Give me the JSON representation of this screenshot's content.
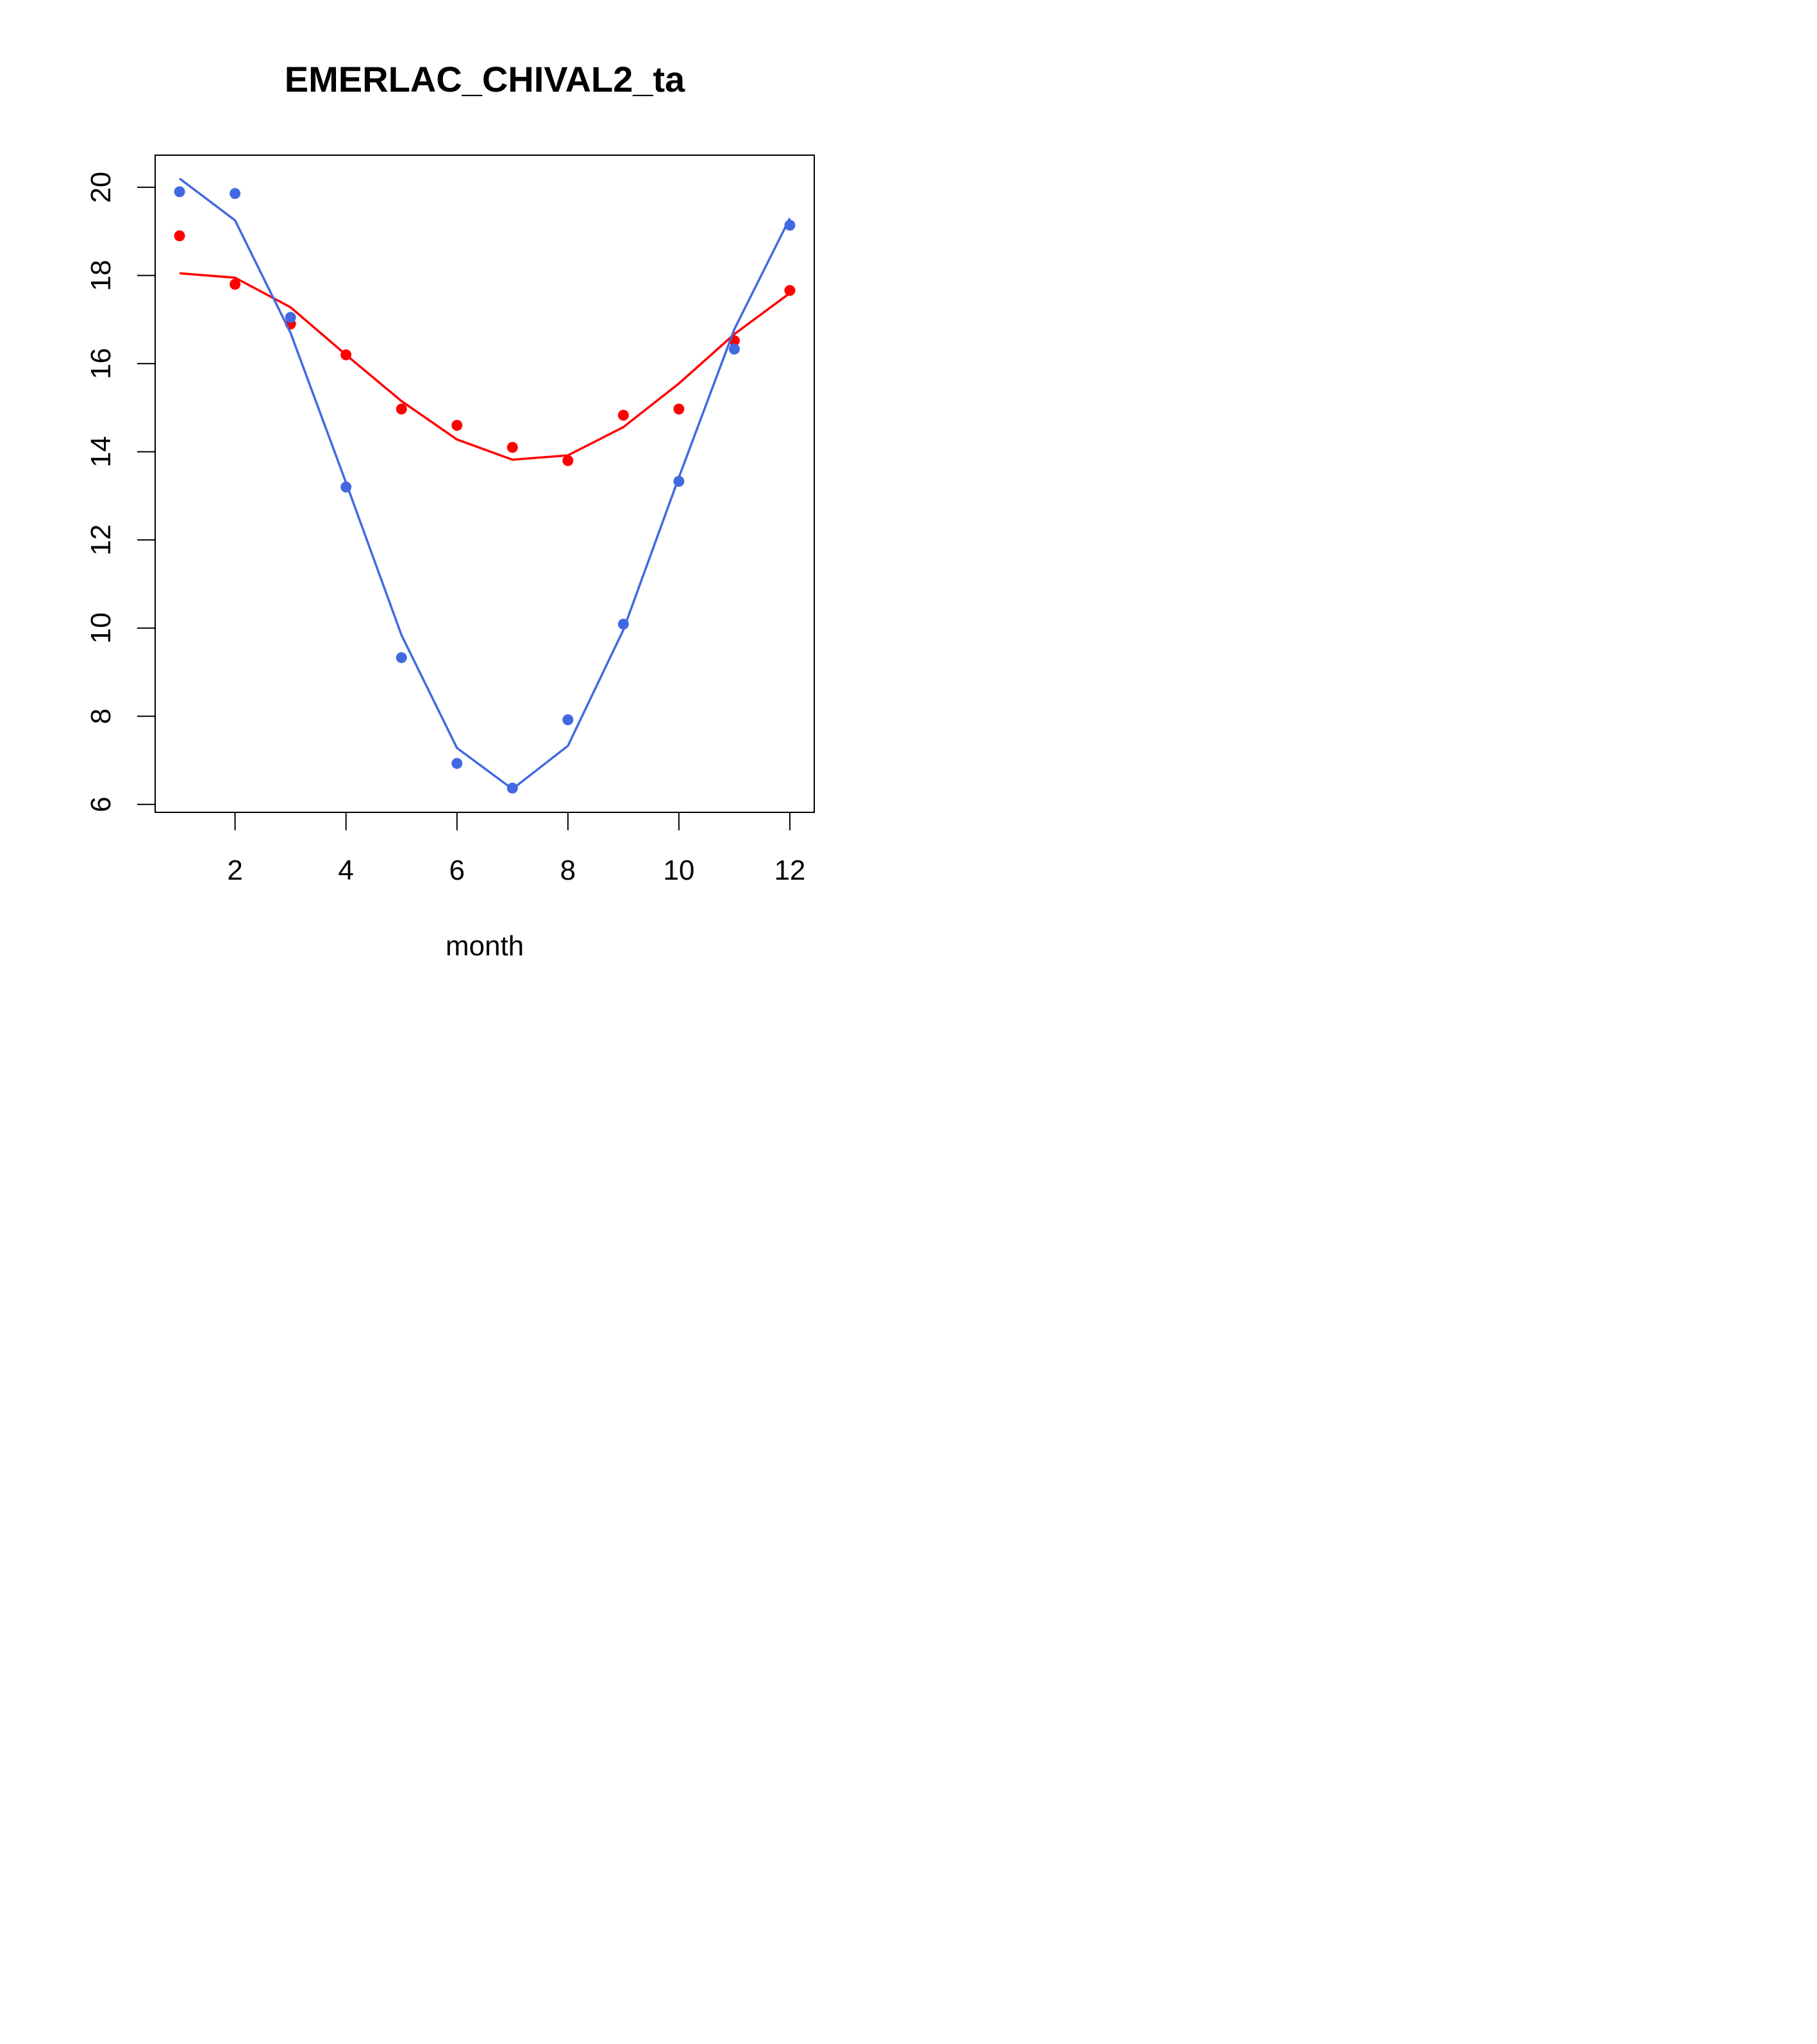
{
  "chart_data": {
    "type": "line",
    "title": "EMERLAC_CHIVAL2_ta",
    "xlabel": "month",
    "ylabel": "",
    "xlim": [
      0.56,
      12.44
    ],
    "ylim": [
      5.82,
      20.73
    ],
    "xticks": [
      2,
      4,
      6,
      8,
      10,
      12
    ],
    "yticks": [
      6,
      8,
      10,
      12,
      14,
      16,
      18,
      20
    ],
    "grid": false,
    "series": [
      {
        "color": "#ff0000",
        "x": [
          1,
          2,
          3,
          4,
          5,
          6,
          7,
          8,
          9,
          10,
          11,
          12
        ],
        "points": [
          18.9,
          17.8,
          16.9,
          16.2,
          14.97,
          14.6,
          14.1,
          13.8,
          14.83,
          14.97,
          16.52,
          17.66
        ],
        "line": [
          18.05,
          17.95,
          17.28,
          16.2,
          15.15,
          14.28,
          13.82,
          13.92,
          14.56,
          15.55,
          16.67,
          17.6
        ]
      },
      {
        "color": "#4169e1",
        "x": [
          1,
          2,
          3,
          4,
          5,
          6,
          7,
          8,
          9,
          10,
          11,
          12
        ],
        "points": [
          19.9,
          19.86,
          17.05,
          13.2,
          9.33,
          6.93,
          6.37,
          7.92,
          10.09,
          13.33,
          16.33,
          19.14
        ],
        "line": [
          20.2,
          19.25,
          16.7,
          13.3,
          9.84,
          7.28,
          6.35,
          7.33,
          9.96,
          13.42,
          16.78,
          19.3
        ]
      }
    ]
  }
}
